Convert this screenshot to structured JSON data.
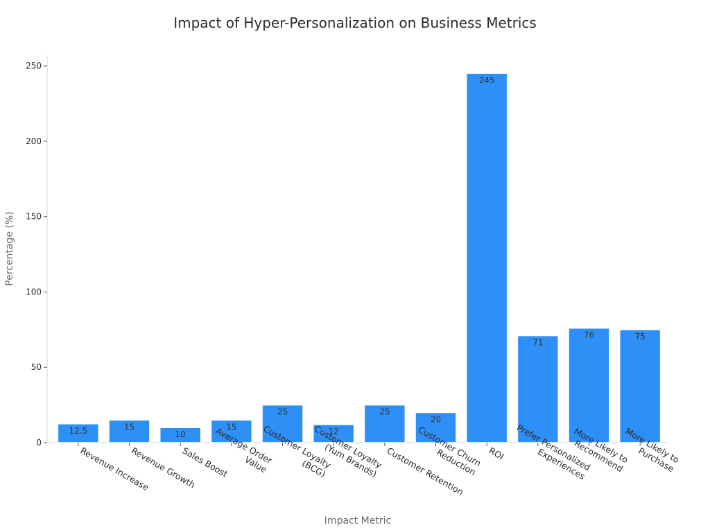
{
  "chart_data": {
    "type": "bar",
    "title": "Impact of Hyper-Personalization on Business Metrics",
    "xlabel": "Impact Metric",
    "ylabel": "Percentage (%)",
    "categories": [
      [
        "Revenue Increase"
      ],
      [
        "Revenue Growth"
      ],
      [
        "Sales Boost"
      ],
      [
        "Average Order",
        "Value"
      ],
      [
        "Customer Loyalty",
        "(BCG)"
      ],
      [
        "Customer Loyalty",
        "(Yum Brands)"
      ],
      [
        "Customer Retention"
      ],
      [
        "Customer Churn",
        "Reduction"
      ],
      [
        "ROI"
      ],
      [
        "Prefer Personalized",
        "Experiences"
      ],
      [
        "More Likely to",
        "Recommend"
      ],
      [
        "More Likely to",
        "Purchase"
      ]
    ],
    "values": [
      12.5,
      15,
      10,
      15,
      25,
      12,
      25,
      20,
      245,
      71,
      76,
      75
    ],
    "ylim": [
      0,
      257
    ],
    "yticks": [
      0,
      50,
      100,
      150,
      200,
      250
    ],
    "grid": false,
    "legend": "none",
    "bar_color": "#2e90f7"
  }
}
